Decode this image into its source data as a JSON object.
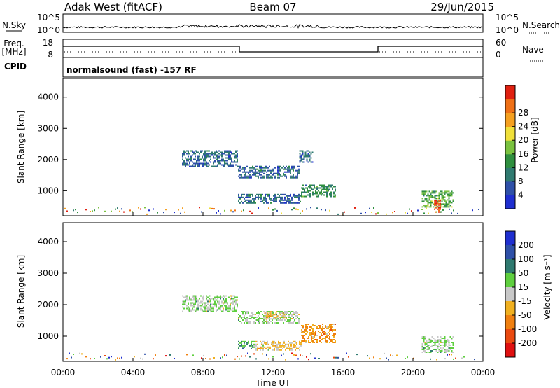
{
  "header": {
    "station": "Adak West (fitACF)",
    "beam": "Beam 07",
    "date": "29/Jun/2015"
  },
  "panels": {
    "noise": {
      "left_label": "N.Sky",
      "right_label": "N.Search",
      "left_ticks": [
        "10^5",
        "10^0"
      ],
      "right_ticks": [
        "10^5",
        "10^0"
      ]
    },
    "freq": {
      "left_label_1": "Freq.",
      "left_label_2": "[MHz]",
      "left_ticks": [
        "18",
        "8"
      ],
      "right_label": "Nave",
      "right_ticks": [
        "60",
        "0"
      ]
    },
    "cpid": {
      "label": "CPID",
      "value": "normalsound (fast) -157 RF"
    }
  },
  "colors": {
    "power_scale": [
      "#1f2fd0",
      "#2e50a8",
      "#2f7a70",
      "#2f8f3f",
      "#7ac23f",
      "#f0e03a",
      "#f5a020",
      "#ef7016",
      "#e02010"
    ],
    "velocity_scale": [
      "#1f2fd0",
      "#2e50a8",
      "#2f7a70",
      "#5fcf3f",
      "#c8c8c8",
      "#f0b020",
      "#f08010",
      "#ea4a10",
      "#e01010"
    ]
  },
  "chart_data": [
    {
      "type": "heatmap",
      "title": "",
      "quantity": "Power",
      "xlabel": "",
      "ylabel": "Slant Range [km]",
      "x_ticks": [
        "00:00",
        "04:00",
        "08:00",
        "12:00",
        "16:00",
        "20:00",
        "00:00"
      ],
      "xlim_hours": [
        0,
        24
      ],
      "ylim_km": [
        200,
        4600
      ],
      "y_ticks": [
        1000,
        2000,
        3000,
        4000
      ],
      "colorbar": {
        "label": "Power [dB]",
        "ticks": [
          4,
          8,
          12,
          16,
          20,
          24,
          28
        ]
      },
      "echo_regions": [
        {
          "t_start": 6.8,
          "t_end": 10.0,
          "r_start": 1800,
          "r_end": 2300,
          "level": 10
        },
        {
          "t_start": 10.0,
          "t_end": 13.5,
          "r_start": 1400,
          "r_end": 1800,
          "level": 10
        },
        {
          "t_start": 13.5,
          "t_end": 14.3,
          "r_start": 1900,
          "r_end": 2300,
          "level": 8
        },
        {
          "t_start": 10.0,
          "t_end": 13.6,
          "r_start": 600,
          "r_end": 900,
          "level": 9
        },
        {
          "t_start": 13.6,
          "t_end": 15.6,
          "r_start": 800,
          "r_end": 1200,
          "level": 12
        },
        {
          "t_start": 20.5,
          "t_end": 22.3,
          "r_start": 500,
          "r_end": 1000,
          "level": 14
        },
        {
          "t_start": 21.2,
          "t_end": 21.6,
          "r_start": 300,
          "r_end": 700,
          "level": 26
        }
      ]
    },
    {
      "type": "heatmap",
      "title": "",
      "quantity": "Velocity",
      "xlabel": "Time UT",
      "ylabel": "Slant Range [km]",
      "x_ticks": [
        "00:00",
        "04:00",
        "08:00",
        "12:00",
        "16:00",
        "20:00",
        "00:00"
      ],
      "xlim_hours": [
        0,
        24
      ],
      "ylim_km": [
        200,
        4600
      ],
      "y_ticks": [
        1000,
        2000,
        3000,
        4000
      ],
      "colorbar": {
        "label": "Velocity [m s⁻¹]",
        "ticks": [
          200,
          100,
          50,
          15,
          -15,
          -50,
          -100,
          -200
        ]
      },
      "echo_regions": [
        {
          "t_start": 6.8,
          "t_end": 10.0,
          "r_start": 1800,
          "r_end": 2300,
          "level": 0
        },
        {
          "t_start": 10.0,
          "t_end": 13.5,
          "r_start": 1400,
          "r_end": 1800,
          "level": -5
        },
        {
          "t_start": 11.5,
          "t_end": 12.7,
          "r_start": 1550,
          "r_end": 1750,
          "level": -40
        },
        {
          "t_start": 10.0,
          "t_end": 11.0,
          "r_start": 600,
          "r_end": 850,
          "level": 30
        },
        {
          "t_start": 11.0,
          "t_end": 13.6,
          "r_start": 550,
          "r_end": 850,
          "level": -40
        },
        {
          "t_start": 13.6,
          "t_end": 15.6,
          "r_start": 800,
          "r_end": 1400,
          "level": -70
        },
        {
          "t_start": 20.5,
          "t_end": 22.3,
          "r_start": 500,
          "r_end": 1000,
          "level": 0
        }
      ]
    }
  ]
}
